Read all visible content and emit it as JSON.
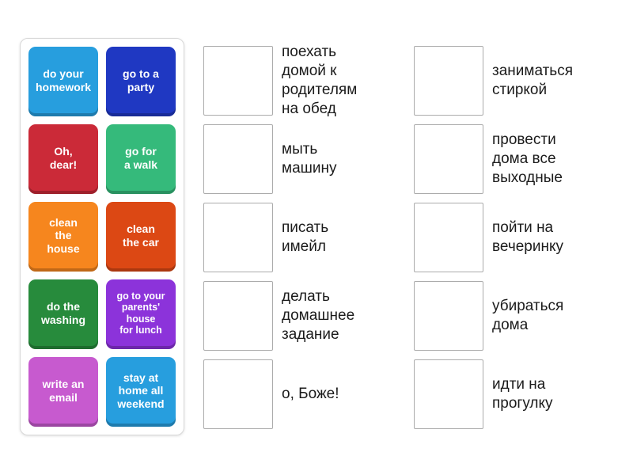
{
  "tile_panel": {
    "tiles": [
      {
        "name": "do-your-homework",
        "label": "do your\nhomework",
        "color": "#279EDE"
      },
      {
        "name": "go-to-a-party",
        "label": "go to a\nparty",
        "color": "#1F38C2"
      },
      {
        "name": "oh-dear",
        "label": "Oh,\ndear!",
        "color": "#CB2A38"
      },
      {
        "name": "go-for-a-walk",
        "label": "go for\na walk",
        "color": "#35BA7B"
      },
      {
        "name": "clean-the-house",
        "label": "clean\nthe\nhouse",
        "color": "#F6861E"
      },
      {
        "name": "clean-the-car",
        "label": "clean\nthe car",
        "color": "#DC4814"
      },
      {
        "name": "do-the-washing",
        "label": "do the\nwashing",
        "color": "#278B3C"
      },
      {
        "name": "go-to-your-parents-house-for-lunch",
        "label": "go to your\nparents'\nhouse\nfor lunch",
        "color": "#8C33DA"
      },
      {
        "name": "write-an-email",
        "label": "write an\nemail",
        "color": "#C75ACF"
      },
      {
        "name": "stay-at-home-all-weekend",
        "label": "stay at\nhome all\nweekend",
        "color": "#279EDE"
      }
    ]
  },
  "matches": {
    "middle": [
      {
        "clue": "поехать\nдомой к\nродителям\nна обед"
      },
      {
        "clue": "мыть\nмашину"
      },
      {
        "clue": "писать\nимейл"
      },
      {
        "clue": "делать\nдомашнее\nзадание"
      },
      {
        "clue": "о, Боже!"
      }
    ],
    "right": [
      {
        "clue": "заниматься\nстиркой"
      },
      {
        "clue": "провести\nдома все\nвыходные"
      },
      {
        "clue": "пойти на\nвечеринку"
      },
      {
        "clue": "убираться\nдома"
      },
      {
        "clue": "идти на\nпрогулку"
      }
    ]
  },
  "colors": {
    "clue_text": "#1B1B1B",
    "dropzone_border": "#ABABAB",
    "panel_border": "#D8D8D8"
  }
}
